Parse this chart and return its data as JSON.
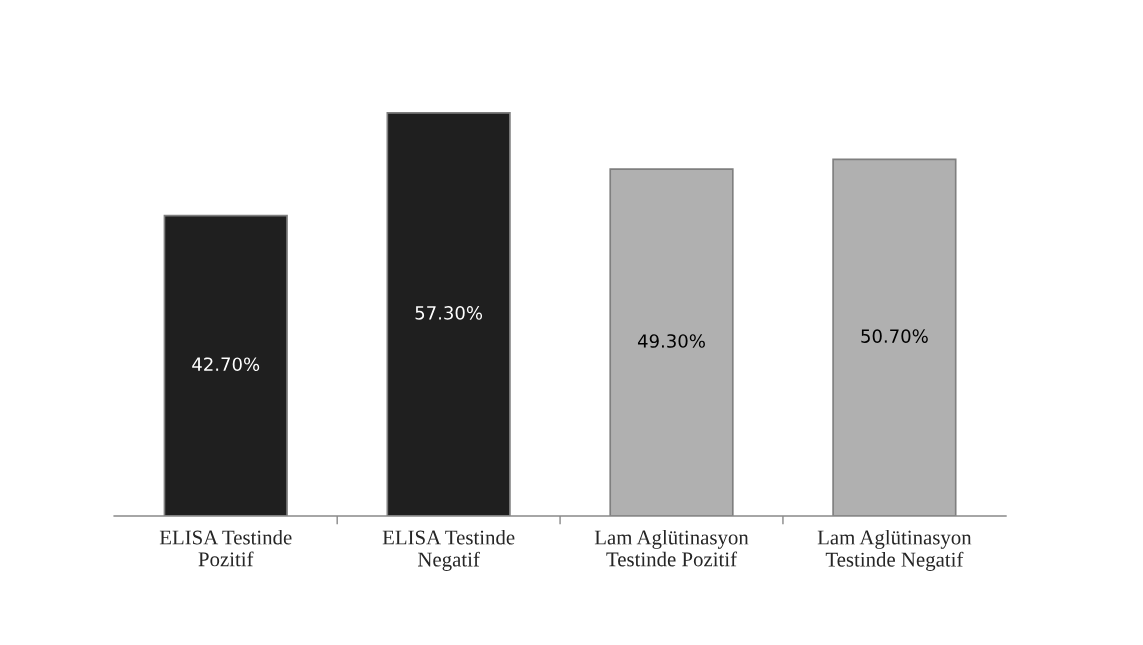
{
  "chart_data": {
    "type": "bar",
    "categories": [
      "ELISA Testinde\nPozitif",
      "ELISA Testinde\nNegatif",
      "Lam Aglütinasyon\nTestinde Pozitif",
      "Lam Aglütinasyon\nTestinde Negatif"
    ],
    "values": [
      42.7,
      57.3,
      49.3,
      50.7
    ],
    "value_labels": [
      "42.70%",
      "57.30%",
      "49.30%",
      "50.70%"
    ],
    "colors": [
      "#1f1f1f",
      "#1f1f1f",
      "#b0b0b0",
      "#b0b0b0"
    ],
    "grid": false
  }
}
